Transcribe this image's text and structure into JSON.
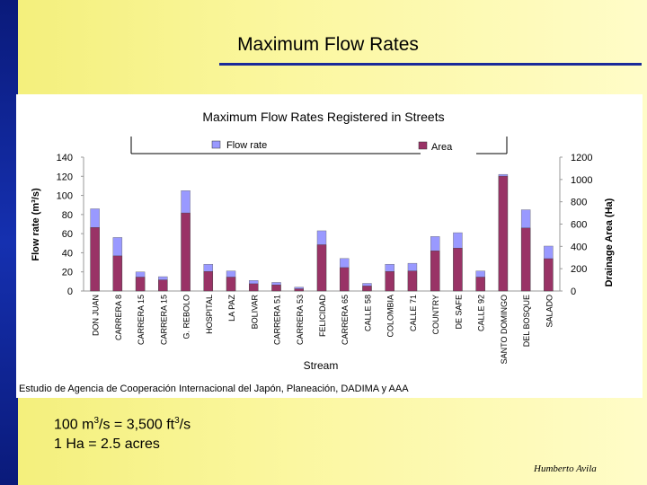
{
  "slide": {
    "title": "Maximum Flow Rates",
    "conversion_lines": [
      {
        "prefix": "100 m",
        "sup1": "3",
        "mid": "/s = 3,500 ft",
        "sup2": "3",
        "suffix": "/s"
      },
      {
        "prefix": "1 Ha = 2.5 acres"
      }
    ],
    "author": "Humberto Avila",
    "source": "Estudio de Agencia de Cooperación Internacional del Japón,  Planeación, DADIMA y AAA"
  },
  "colors": {
    "flow": "#9999ff",
    "area": "#993366",
    "accent_bar": "#1530b0",
    "title_rule": "#1a2a9a"
  },
  "chart_data": {
    "type": "bar",
    "title": "Maximum Flow Rates Registered in Streets",
    "xlabel": "Stream",
    "ylabel": "Flow rate (m³/s)",
    "y2label": "Drainage Area (Ha)",
    "ylim": [
      0,
      140
    ],
    "y2lim": [
      0,
      1200
    ],
    "yticks": [
      "0",
      "20",
      "40",
      "60",
      "80",
      "100",
      "120",
      "140"
    ],
    "y2ticks": [
      "0",
      "200",
      "400",
      "600",
      "800",
      "1000",
      "1200"
    ],
    "grid": false,
    "legend": "top",
    "categories": [
      "DON JUAN",
      "CARRERA 8",
      "CARRERA 15",
      "CARRERA 15",
      "G. REBOLO",
      "HOSPITAL",
      "LA PAZ",
      "BOLIVAR",
      "CARRERA 51",
      "CARRERA 53",
      "FELICIDAD",
      "CARRERA 65",
      "CALLE 58",
      "COLOMBIA",
      "CALLE 71",
      "COUNTRY",
      "DE SAFE",
      "CALLE 92",
      "SANTO DOMINGO",
      "DEL BOSQUE",
      "SALADO"
    ],
    "series": [
      {
        "name": "Flow rate",
        "axis": "left",
        "values": [
          86,
          56,
          20,
          15,
          105,
          28,
          21,
          11,
          9,
          4,
          63,
          34,
          8,
          28,
          29,
          57,
          61,
          21,
          122,
          85,
          47
        ]
      },
      {
        "name": "Area",
        "axis": "right",
        "values": [
          570,
          315,
          125,
          100,
          700,
          175,
          125,
          65,
          55,
          20,
          415,
          210,
          45,
          175,
          180,
          360,
          385,
          125,
          1030,
          565,
          290
        ]
      }
    ]
  }
}
